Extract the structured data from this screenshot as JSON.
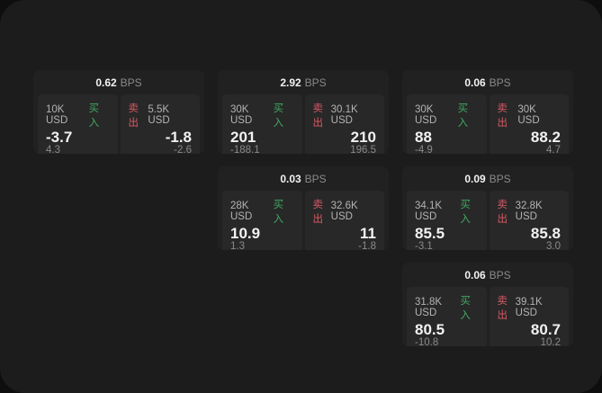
{
  "theme": {
    "outer_bg": "#0e0e0e",
    "panel_bg": "#1c1c1c",
    "card_bg": "#212121",
    "cell_bg": "#282828",
    "text_primary": "#f2f2f2",
    "text_secondary": "#8a8a8a",
    "size_label_color": "#b3b3b3",
    "buy_color": "#40a962",
    "sell_color": "#d95965"
  },
  "labels": {
    "bps": "BPS",
    "buy": "买入",
    "sell": "卖出"
  },
  "cards": [
    {
      "bps": "0.62",
      "buy": {
        "size": "10K USD",
        "value": "-3.7",
        "delta": "4.3"
      },
      "sell": {
        "size": "5.5K USD",
        "value": "-1.8",
        "delta": "-2.6"
      }
    },
    {
      "bps": "2.92",
      "buy": {
        "size": "30K USD",
        "value": "201",
        "delta": "-188.1"
      },
      "sell": {
        "size": "30.1K USD",
        "value": "210",
        "delta": "196.5"
      }
    },
    {
      "bps": "0.06",
      "buy": {
        "size": "30K USD",
        "value": "88",
        "delta": "-4.9"
      },
      "sell": {
        "size": "30K USD",
        "value": "88.2",
        "delta": "4.7"
      }
    },
    {
      "bps": "0.03",
      "buy": {
        "size": "28K USD",
        "value": "10.9",
        "delta": "1.3"
      },
      "sell": {
        "size": "32.6K USD",
        "value": "11",
        "delta": "-1.8"
      }
    },
    {
      "bps": "0.09",
      "buy": {
        "size": "34.1K USD",
        "value": "85.5",
        "delta": "-3.1"
      },
      "sell": {
        "size": "32.8K USD",
        "value": "85.8",
        "delta": "3.0"
      }
    },
    {
      "bps": "0.06",
      "buy": {
        "size": "31.8K USD",
        "value": "80.5",
        "delta": "-10.8"
      },
      "sell": {
        "size": "39.1K USD",
        "value": "80.7",
        "delta": "10.2"
      }
    }
  ]
}
